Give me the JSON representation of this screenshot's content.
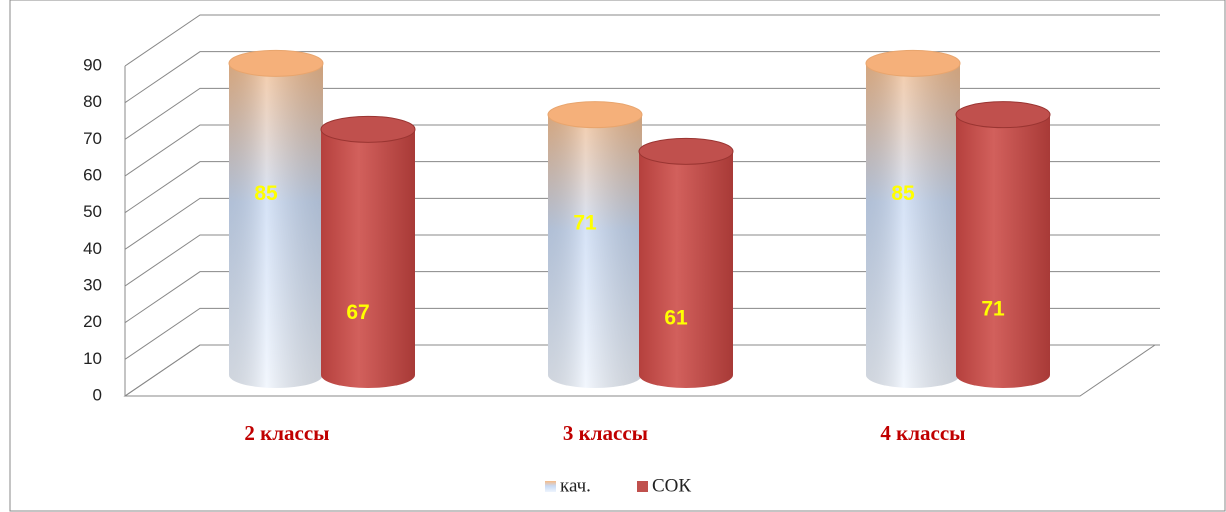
{
  "chart_data": {
    "type": "bar3d",
    "categories": [
      "2 классы",
      "3 классы",
      "4 классы"
    ],
    "series": [
      {
        "name": "кач.",
        "color": "#f5b07a",
        "values": [
          85,
          71,
          85
        ]
      },
      {
        "name": "СОК",
        "color": "#c0504d",
        "values": [
          67,
          61,
          71
        ]
      }
    ],
    "ylim": [
      0,
      90
    ],
    "yticks": [
      0,
      10,
      20,
      30,
      40,
      50,
      60,
      70,
      80,
      90
    ],
    "grid": true
  }
}
